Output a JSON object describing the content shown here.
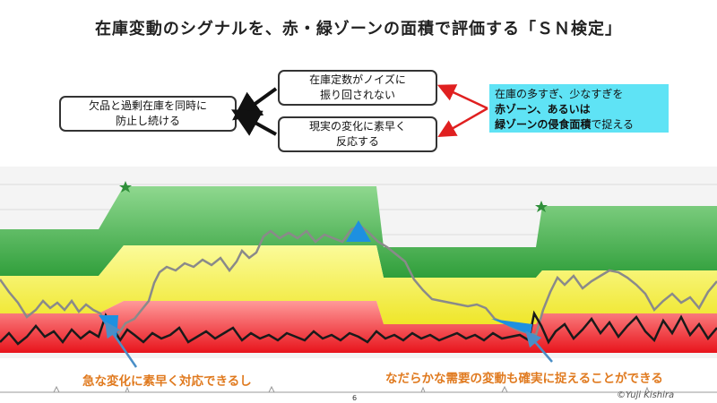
{
  "title": "在庫変動のシグナルを、赤・緑ゾーンの面積で評価する「ＳＮ検定」",
  "boxes": {
    "goal": [
      "欠品と過剰在庫を同時に",
      "防止し続ける"
    ],
    "noise": [
      "在庫定数がノイズに",
      "振り回されない"
    ],
    "react": [
      "現実の変化に素早く",
      "反応する"
    ]
  },
  "info": {
    "line1": "在庫の多すぎ、少なすぎを",
    "line2_bold": "赤ゾーン、あるいは",
    "line3_bold": "緑ゾーンの侵食面積",
    "line3_tail": "で捉える"
  },
  "captions": {
    "left": "急な変化に素早く対応できるし",
    "right": "なだらかな需要の変動も確実に捉えることができる"
  },
  "page_number": "6",
  "credit": "©Yuji Kishira",
  "colors": {
    "green_zone": "#3fb048",
    "yellow_zone": "#f3f24a",
    "red_zone": "#ec1c24",
    "blue_marker": "#1e90e0",
    "red_arrow": "#e02020",
    "caption": "#e07a1f",
    "info_bg": "#5fe3f5"
  }
}
